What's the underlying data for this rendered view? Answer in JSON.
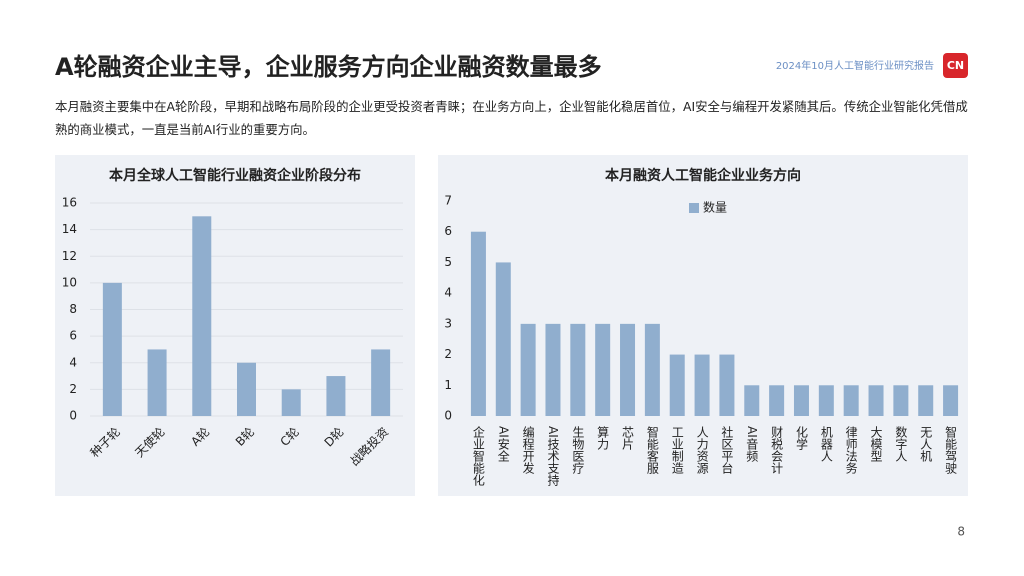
{
  "page": {
    "title": "A轮融资企业主导，企业服务方向企业融资数量最多",
    "report": "2024年10月人工智能行业研究报告",
    "logo": "CN",
    "description": "本月融资主要集中在A轮阶段，早期和战略布局阶段的企业更受投资者青睐；在业务方向上，企业智能化稳居首位，AI安全与编程开发紧随其后。传统企业智能化凭借成熟的商业模式，一直是当前AI行业的重要方向。",
    "page_number": "8"
  },
  "chart_data": [
    {
      "type": "bar",
      "title": "本月全球人工智能行业融资企业阶段分布",
      "categories": [
        "种子轮",
        "天使轮",
        "A轮",
        "B轮",
        "C轮",
        "D轮",
        "战略投资"
      ],
      "values": [
        10,
        5,
        15,
        4,
        2,
        3,
        5
      ],
      "color": "#90aece",
      "ylim": [
        0,
        16
      ],
      "yticks": [
        0,
        2,
        4,
        6,
        8,
        10,
        12,
        14,
        16
      ],
      "grid": true
    },
    {
      "type": "bar",
      "title": "本月融资人工智能企业业务方向",
      "categories": [
        "企业智能化",
        "AI安全",
        "编程开发",
        "AI技术支持",
        "生物医疗",
        "算力",
        "芯片",
        "智能客服",
        "工业制造",
        "人力资源",
        "社区平台",
        "AI音频",
        "财税会计",
        "化学",
        "机器人",
        "律师法务",
        "大模型",
        "数字人",
        "无人机",
        "智能驾驶"
      ],
      "series": [
        {
          "name": "数量",
          "color": "#90aece",
          "values": [
            6,
            5,
            3,
            3,
            3,
            3,
            3,
            3,
            2,
            2,
            2,
            1,
            1,
            1,
            1,
            1,
            1,
            1,
            1,
            1
          ]
        }
      ],
      "ylim": [
        0,
        7
      ],
      "yticks": [
        0,
        1,
        2,
        3,
        4,
        5,
        6,
        7
      ],
      "grid": false,
      "legend": "top"
    }
  ]
}
